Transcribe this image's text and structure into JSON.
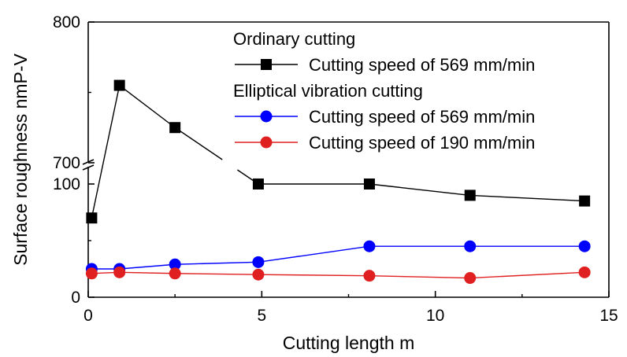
{
  "chart_data": {
    "type": "line",
    "xlabel": "Cutting length m",
    "ylabel": "Surface roughness nmP-V",
    "xlim": [
      0,
      15
    ],
    "x_ticks": [
      0,
      5,
      10,
      15
    ],
    "y_ticks": [
      0,
      100,
      700,
      800
    ],
    "y_axis_break": [
      100,
      700
    ],
    "y_segments": [
      {
        "range": [
          0,
          100
        ]
      },
      {
        "range": [
          700,
          800
        ]
      }
    ],
    "grid": false,
    "legend_position": "top-right",
    "legend_groups": [
      {
        "title": "Ordinary cutting",
        "series_indices": [
          0
        ]
      },
      {
        "title": "Elliptical vibration cutting",
        "series_indices": [
          1,
          2
        ]
      }
    ],
    "series": [
      {
        "name": "Cutting speed of 569 mm/min",
        "group": "Ordinary cutting",
        "marker": "square",
        "color": "#000000",
        "x": [
          0.1,
          0.9,
          2.5,
          4.9,
          8.1,
          11.0,
          14.3
        ],
        "y": [
          70,
          755,
          725,
          100,
          100,
          90,
          85
        ]
      },
      {
        "name": "Cutting speed of 569 mm/min",
        "group": "Elliptical vibration cutting",
        "marker": "circle",
        "color": "#0000ff",
        "x": [
          0.1,
          0.9,
          2.5,
          4.9,
          8.1,
          11.0,
          14.3
        ],
        "y": [
          25,
          25,
          29,
          31,
          45,
          45,
          45
        ]
      },
      {
        "name": "Cutting speed of 190 mm/min",
        "group": "Elliptical vibration cutting",
        "marker": "circle",
        "color": "#e02020",
        "x": [
          0.1,
          0.9,
          2.5,
          4.9,
          8.1,
          11.0,
          14.3
        ],
        "y": [
          21,
          22,
          21,
          20,
          19,
          17,
          22
        ]
      }
    ]
  }
}
